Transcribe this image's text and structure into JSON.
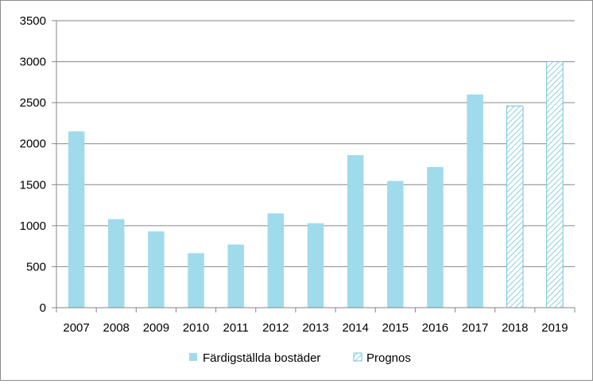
{
  "chart_data": {
    "type": "bar",
    "categories": [
      "2007",
      "2008",
      "2009",
      "2010",
      "2011",
      "2012",
      "2013",
      "2014",
      "2015",
      "2016",
      "2017",
      "2018",
      "2019"
    ],
    "series": [
      {
        "name": "Färdigställda bostäder",
        "values": [
          2150,
          1080,
          930,
          665,
          770,
          1150,
          1030,
          1860,
          1545,
          1715,
          2600,
          null,
          null
        ]
      },
      {
        "name": "Prognos",
        "values": [
          null,
          null,
          null,
          null,
          null,
          null,
          null,
          null,
          null,
          null,
          null,
          2460,
          3000
        ]
      }
    ],
    "y_ticks": [
      "0",
      "500",
      "1000",
      "1500",
      "2000",
      "2500",
      "3000",
      "3500"
    ],
    "ylim": [
      0,
      3500
    ],
    "grid": true,
    "legend_position": "bottom-center",
    "colors": {
      "actual_fill": "#9fdbea",
      "forecast_fill": "#ffffff",
      "forecast_hatch": "#6dc3d8",
      "forecast_border": "#6dc3d8",
      "grid": "#868686",
      "axis": "#868686"
    },
    "title": "",
    "xlabel": "",
    "ylabel": ""
  }
}
